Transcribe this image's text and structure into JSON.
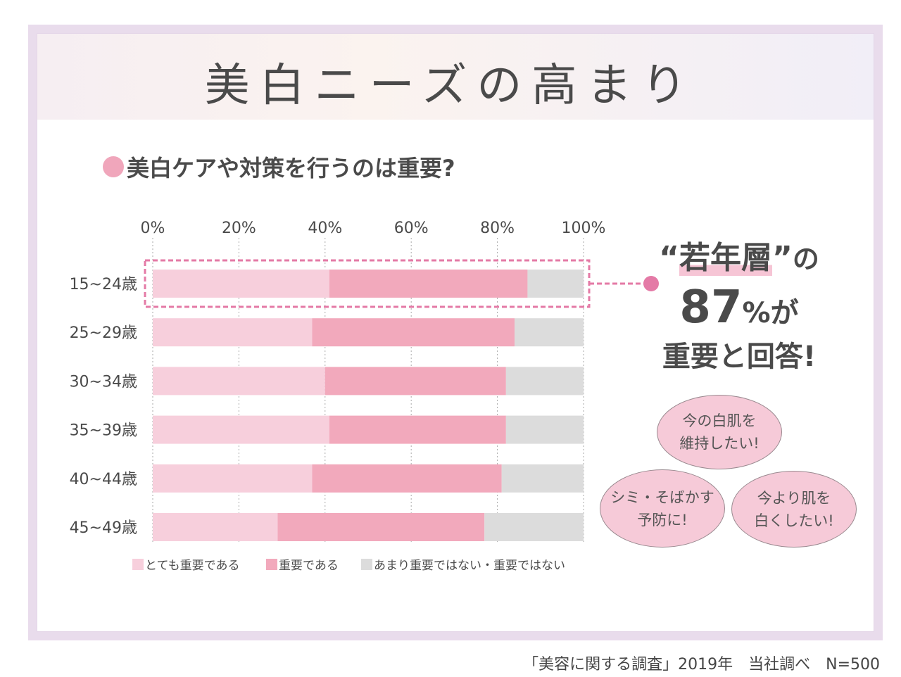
{
  "title": "美白ニーズの高まり",
  "subtitle": "美白ケアや対策を行うのは重要?",
  "chart_data": {
    "type": "bar",
    "orientation": "horizontal",
    "stacked": true,
    "categories": [
      "15~24歳",
      "25~29歳",
      "30~34歳",
      "35~39歳",
      "40~44歳",
      "45~49歳"
    ],
    "x_ticks": [
      "0%",
      "20%",
      "40%",
      "60%",
      "80%",
      "100%"
    ],
    "xlim": [
      0,
      100
    ],
    "grid": "vertical dotted",
    "legend_position": "bottom",
    "series": [
      {
        "name": "とても重要である",
        "color": "#f7cfdc",
        "values": [
          41,
          37,
          40,
          41,
          37,
          29
        ]
      },
      {
        "name": "重要である",
        "color": "#f2a9bc",
        "values": [
          46,
          47,
          42,
          41,
          44,
          48
        ]
      },
      {
        "name": "あまり重要ではない・重要ではない",
        "color": "#dcdcdc",
        "values": [
          13,
          16,
          18,
          18,
          19,
          23
        ]
      }
    ],
    "highlight_category": "15~24歳",
    "highlight_color": "#e47aa6"
  },
  "callout": {
    "line1_quote_open": "“",
    "line1_word": "若年層",
    "line1_quote_close": "”",
    "line1_suffix": "の",
    "number": "87",
    "percent": "%が",
    "line3": "重要と回答!"
  },
  "bubbles": [
    {
      "line1": "今の白肌を",
      "line2": "維持したい!"
    },
    {
      "line1": "シミ・そばかす",
      "line2": "予防に!"
    },
    {
      "line1": "今より肌を",
      "line2": "白くしたい!"
    }
  ],
  "footer": "「美容に関する調査」2019年　当社調べ　N=500"
}
